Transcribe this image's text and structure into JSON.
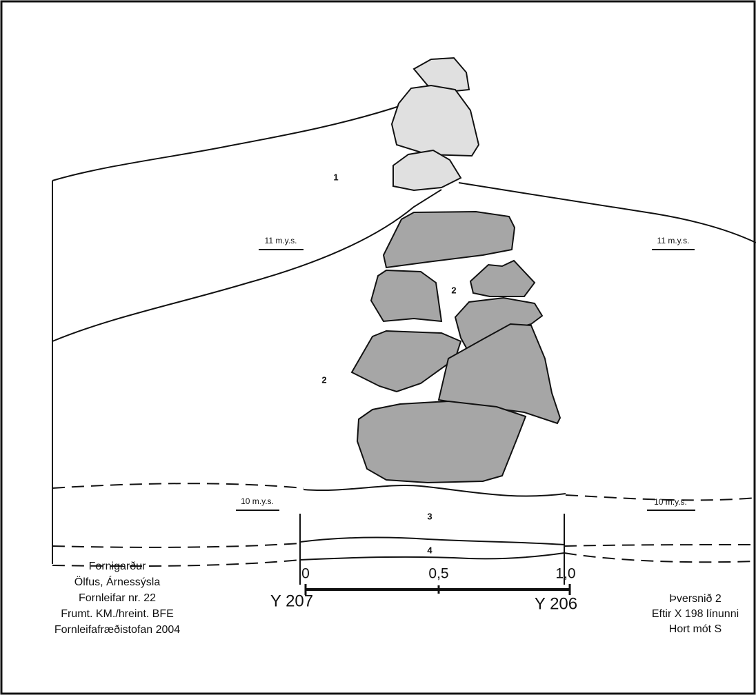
{
  "layers": [
    "1",
    "2",
    "2",
    "3",
    "4"
  ],
  "elevations": [
    "11 m.y.s.",
    "11 m.y.s.",
    "10 m.y.s.",
    "10 m.y.s."
  ],
  "grid_points": [
    "Y 207",
    "Y 206"
  ],
  "credits": [
    "Fornigarður",
    "Ölfus, Árnessýsla",
    "Fornleifar nr. 22",
    "Frumt. KM./hreint. BFE",
    "Fornleifafræðistofan 2004"
  ],
  "section_info": [
    "Þversnið 2",
    "Eftir X 198 línunni",
    "Hort mót S"
  ],
  "scale": {
    "labels": [
      "0",
      "0,5",
      "1,0"
    ]
  }
}
